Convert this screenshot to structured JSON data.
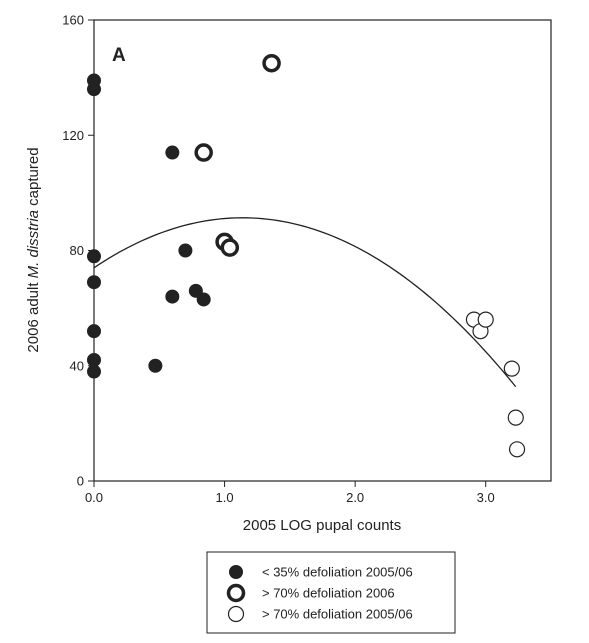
{
  "chart_data": {
    "type": "scatter",
    "panel_label": "A",
    "xlabel": "2005 LOG pupal counts",
    "ylabel_parts": [
      "2006 adult ",
      "M. disstria",
      " captured"
    ],
    "xlim": [
      0,
      3.5
    ],
    "ylim": [
      0,
      160
    ],
    "x_ticks": [
      0,
      1,
      2,
      3
    ],
    "x_tick_labels": [
      "0.0",
      "1.0",
      "2.0",
      "3.0"
    ],
    "y_ticks": [
      0,
      40,
      80,
      120,
      160
    ],
    "y_tick_labels": [
      "0",
      "40",
      "80",
      "120",
      "160"
    ],
    "grid": false,
    "legend_position": "bottom-center",
    "series": [
      {
        "name": "< 35% defoliation 2005/06",
        "marker": "filled-circle",
        "color": "#222222",
        "points": [
          [
            0,
            139
          ],
          [
            0,
            136
          ],
          [
            0,
            78
          ],
          [
            0,
            69
          ],
          [
            0,
            52
          ],
          [
            0,
            42
          ],
          [
            0,
            38
          ],
          [
            0.47,
            40
          ],
          [
            0.6,
            114
          ],
          [
            0.6,
            64
          ],
          [
            0.7,
            80
          ],
          [
            0.78,
            66
          ],
          [
            0.84,
            63
          ]
        ]
      },
      {
        "name": "> 70% defoliation 2006",
        "marker": "thick-ring",
        "color": "#222222",
        "points": [
          [
            0.84,
            114
          ],
          [
            1.0,
            83
          ],
          [
            1.04,
            81
          ],
          [
            1.36,
            145
          ]
        ]
      },
      {
        "name": "> 70% defoliation 2005/06",
        "marker": "open-circle",
        "color": "#222222",
        "points": [
          [
            2.91,
            56
          ],
          [
            2.96,
            52
          ],
          [
            3.0,
            56
          ],
          [
            3.2,
            39
          ],
          [
            3.23,
            22
          ],
          [
            3.24,
            11
          ]
        ]
      }
    ],
    "fit_curve": {
      "type": "quadratic",
      "x_range": [
        0,
        3.23
      ],
      "coefficients": [
        74,
        30.5,
        -13.4
      ]
    }
  }
}
